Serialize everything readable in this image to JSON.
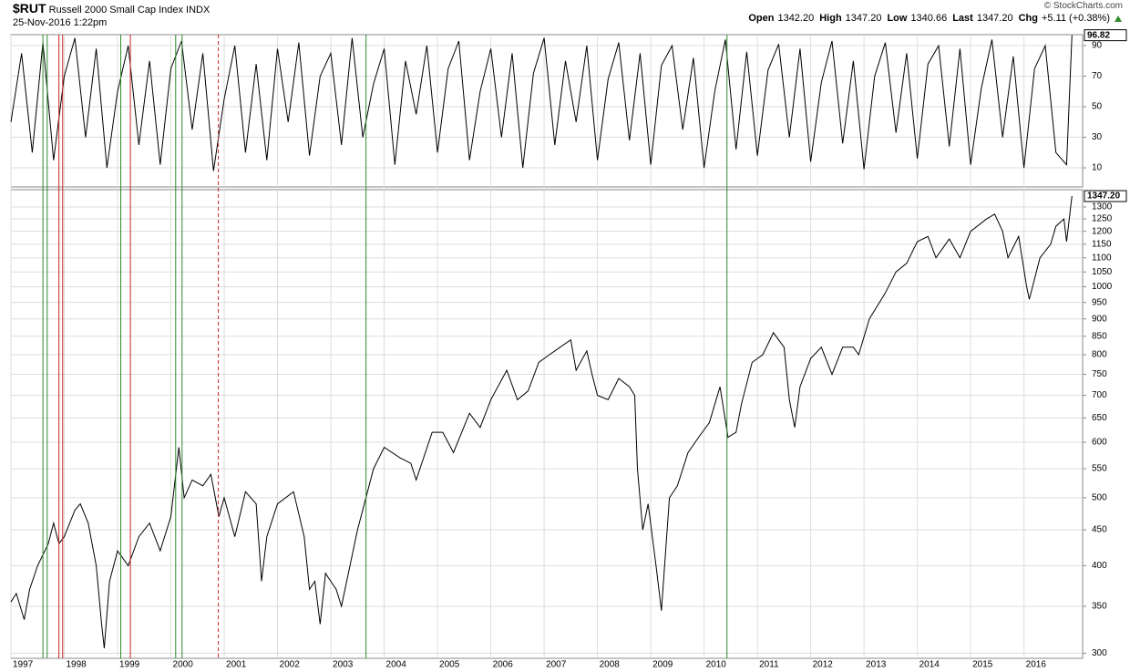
{
  "header": {
    "symbol": "$RUT",
    "name": "Russell 2000 Small Cap Index",
    "exchange": "INDX",
    "date": "25-Nov-2016 1:22pm",
    "quote": [
      {
        "label": "Open",
        "value": "1342.20"
      },
      {
        "label": "High",
        "value": "1347.20"
      },
      {
        "label": "Low",
        "value": "1340.66"
      },
      {
        "label": "Last",
        "value": "1347.20"
      },
      {
        "label": "Chg",
        "value": "+5.11 (+0.38%)"
      }
    ],
    "source": "© StockCharts.com"
  },
  "chart_data": [
    {
      "type": "line",
      "color": "#000000",
      "grid": true,
      "xlim": [
        1997,
        2017.1
      ],
      "ylim": [
        -2.5,
        97.2
      ],
      "yticks": [
        10,
        30,
        50,
        70,
        90
      ],
      "last_value_label": "96.82",
      "x": [
        1997.0,
        1997.2,
        1997.4,
        1997.6,
        1997.8,
        1998.0,
        1998.2,
        1998.4,
        1998.6,
        1998.8,
        1999.0,
        1999.2,
        1999.4,
        1999.6,
        1999.8,
        2000.0,
        2000.2,
        2000.4,
        2000.6,
        2000.8,
        2001.0,
        2001.2,
        2001.4,
        2001.6,
        2001.8,
        2002.0,
        2002.2,
        2002.4,
        2002.6,
        2002.8,
        2003.0,
        2003.2,
        2003.4,
        2003.6,
        2003.8,
        2004.0,
        2004.2,
        2004.4,
        2004.6,
        2004.8,
        2005.0,
        2005.2,
        2005.4,
        2005.6,
        2005.8,
        2006.0,
        2006.2,
        2006.4,
        2006.6,
        2006.8,
        2007.0,
        2007.2,
        2007.4,
        2007.6,
        2007.8,
        2008.0,
        2008.2,
        2008.4,
        2008.6,
        2008.8,
        2009.0,
        2009.2,
        2009.4,
        2009.6,
        2009.8,
        2010.0,
        2010.2,
        2010.4,
        2010.6,
        2010.8,
        2011.0,
        2011.2,
        2011.4,
        2011.6,
        2011.8,
        2012.0,
        2012.2,
        2012.4,
        2012.6,
        2012.8,
        2013.0,
        2013.2,
        2013.4,
        2013.6,
        2013.8,
        2014.0,
        2014.2,
        2014.4,
        2014.6,
        2014.8,
        2015.0,
        2015.2,
        2015.4,
        2015.6,
        2015.8,
        2016.0,
        2016.2,
        2016.4,
        2016.6,
        2016.8,
        2016.9
      ],
      "values": [
        40,
        85,
        20,
        92,
        15,
        70,
        95,
        30,
        88,
        10,
        60,
        90,
        25,
        80,
        12,
        75,
        93,
        35,
        85,
        8,
        55,
        90,
        20,
        78,
        15,
        88,
        40,
        92,
        18,
        70,
        85,
        25,
        95,
        30,
        65,
        88,
        12,
        80,
        45,
        90,
        20,
        75,
        93,
        15,
        60,
        88,
        30,
        85,
        10,
        72,
        95,
        25,
        80,
        40,
        90,
        15,
        68,
        92,
        28,
        85,
        12,
        77,
        90,
        35,
        82,
        10,
        60,
        94,
        22,
        86,
        18,
        74,
        91,
        30,
        88,
        14,
        66,
        93,
        26,
        80,
        9,
        70,
        92,
        33,
        85,
        16,
        78,
        90,
        24,
        88,
        12,
        62,
        94,
        30,
        83,
        10,
        75,
        90,
        20,
        12,
        96.82
      ]
    },
    {
      "type": "line",
      "log_scale": true,
      "color": "#000000",
      "grid": true,
      "xlim": [
        1997,
        2017.1
      ],
      "ylim": [
        295,
        1376
      ],
      "xticks": [
        1997,
        1998,
        1999,
        2000,
        2001,
        2002,
        2003,
        2004,
        2005,
        2006,
        2007,
        2008,
        2009,
        2010,
        2011,
        2012,
        2013,
        2014,
        2015,
        2016
      ],
      "yticks": [
        300,
        350,
        400,
        450,
        500,
        550,
        600,
        650,
        700,
        750,
        800,
        850,
        900,
        950,
        1000,
        1050,
        1100,
        1150,
        1200,
        1250,
        1300
      ],
      "last_value_label": "1347.20",
      "x": [
        1997.0,
        1997.1,
        1997.25,
        1997.35,
        1997.5,
        1997.7,
        1997.8,
        1997.9,
        1998.0,
        1998.2,
        1998.3,
        1998.45,
        1998.6,
        1998.7,
        1998.75,
        1998.85,
        1999.0,
        1999.2,
        1999.4,
        1999.6,
        1999.8,
        2000.0,
        2000.15,
        2000.25,
        2000.4,
        2000.6,
        2000.75,
        2000.9,
        2001.0,
        2001.2,
        2001.4,
        2001.6,
        2001.7,
        2001.8,
        2002.0,
        2002.3,
        2002.5,
        2002.6,
        2002.7,
        2002.8,
        2002.9,
        2003.1,
        2003.2,
        2003.5,
        2003.8,
        2004.0,
        2004.3,
        2004.5,
        2004.6,
        2004.9,
        2005.1,
        2005.3,
        2005.6,
        2005.8,
        2006.0,
        2006.3,
        2006.5,
        2006.7,
        2006.9,
        2007.1,
        2007.3,
        2007.5,
        2007.6,
        2007.8,
        2007.9,
        2008.0,
        2008.2,
        2008.4,
        2008.6,
        2008.7,
        2008.75,
        2008.85,
        2008.95,
        2009.1,
        2009.2,
        2009.35,
        2009.5,
        2009.7,
        2009.9,
        2010.1,
        2010.3,
        2010.45,
        2010.6,
        2010.7,
        2010.9,
        2011.1,
        2011.3,
        2011.5,
        2011.6,
        2011.7,
        2011.8,
        2012.0,
        2012.2,
        2012.4,
        2012.6,
        2012.8,
        2012.9,
        2013.1,
        2013.4,
        2013.6,
        2013.8,
        2014.0,
        2014.2,
        2014.35,
        2014.6,
        2014.8,
        2015.0,
        2015.3,
        2015.45,
        2015.6,
        2015.7,
        2015.9,
        2016.05,
        2016.1,
        2016.3,
        2016.5,
        2016.6,
        2016.75,
        2016.8,
        2016.9
      ],
      "values": [
        355,
        365,
        335,
        370,
        400,
        430,
        460,
        430,
        440,
        480,
        490,
        460,
        400,
        330,
        305,
        380,
        420,
        400,
        440,
        460,
        420,
        470,
        590,
        500,
        530,
        520,
        540,
        470,
        500,
        440,
        510,
        490,
        380,
        440,
        490,
        510,
        440,
        370,
        380,
        330,
        390,
        370,
        350,
        450,
        550,
        590,
        570,
        560,
        530,
        620,
        620,
        580,
        660,
        630,
        690,
        760,
        690,
        710,
        780,
        800,
        820,
        840,
        760,
        810,
        750,
        700,
        690,
        740,
        720,
        700,
        550,
        450,
        490,
        400,
        345,
        500,
        520,
        580,
        610,
        640,
        720,
        610,
        620,
        680,
        780,
        800,
        860,
        820,
        690,
        630,
        720,
        790,
        820,
        750,
        820,
        820,
        800,
        900,
        980,
        1050,
        1080,
        1160,
        1180,
        1100,
        1170,
        1100,
        1200,
        1250,
        1270,
        1200,
        1100,
        1180,
        1000,
        960,
        1100,
        1150,
        1220,
        1250,
        1160,
        1347.2
      ],
      "markers": [
        {
          "x": 1997.6,
          "color": "#2e8b2e"
        },
        {
          "x": 1997.68,
          "color": "#2e8b2e"
        },
        {
          "x": 1997.9,
          "color": "#cc2222"
        },
        {
          "x": 1997.97,
          "color": "#cc2222"
        },
        {
          "x": 1999.06,
          "color": "#2e8b2e"
        },
        {
          "x": 1999.24,
          "color": "#cc2222"
        },
        {
          "x": 2000.09,
          "color": "#2e8b2e"
        },
        {
          "x": 2000.21,
          "color": "#2e8b2e"
        },
        {
          "x": 2000.89,
          "color": "#cc2222",
          "dashed": true
        },
        {
          "x": 2003.66,
          "color": "#2e8b2e"
        },
        {
          "x": 2010.43,
          "color": "#2e8b2e"
        }
      ]
    }
  ]
}
